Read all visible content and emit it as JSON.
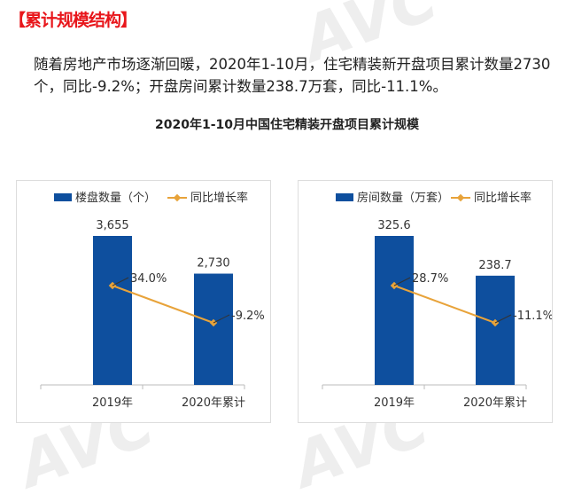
{
  "heading": "【累计规模结构】",
  "paragraph": "随着房地产市场逐渐回暖，2020年1-10月，住宅精装新开盘项目累计数量2730个，同比-9.2%；开盘房间累计数量238.7万套，同比-11.1%。",
  "colors": {
    "bar": "#0e4f9e",
    "line": "#e8a33a",
    "heading": "#e8161b"
  },
  "chart_data": [
    {
      "type": "bar+line",
      "title": "2020年1-10月中国住宅精装开盘项目累计规模",
      "categories": [
        "2019年",
        "2020年累计"
      ],
      "series": [
        {
          "name": "楼盘数量（个）",
          "type": "bar",
          "values": [
            3655,
            2730
          ],
          "labels": [
            "3,655",
            "2,730"
          ]
        },
        {
          "name": "同比增长率",
          "type": "line",
          "values": [
            34.0,
            -9.2
          ],
          "labels": [
            "34.0%",
            "-9.2%"
          ]
        }
      ],
      "legend": "top",
      "grid": false
    },
    {
      "type": "bar+line",
      "categories": [
        "2019年",
        "2020年累计"
      ],
      "series": [
        {
          "name": "房间数量（万套）",
          "type": "bar",
          "values": [
            325.6,
            238.7
          ],
          "labels": [
            "325.6",
            "238.7"
          ]
        },
        {
          "name": "同比增长率",
          "type": "line",
          "values": [
            28.7,
            -11.1
          ],
          "labels": [
            "28.7%",
            "-11.1%"
          ]
        }
      ],
      "legend": "top",
      "grid": false
    }
  ]
}
